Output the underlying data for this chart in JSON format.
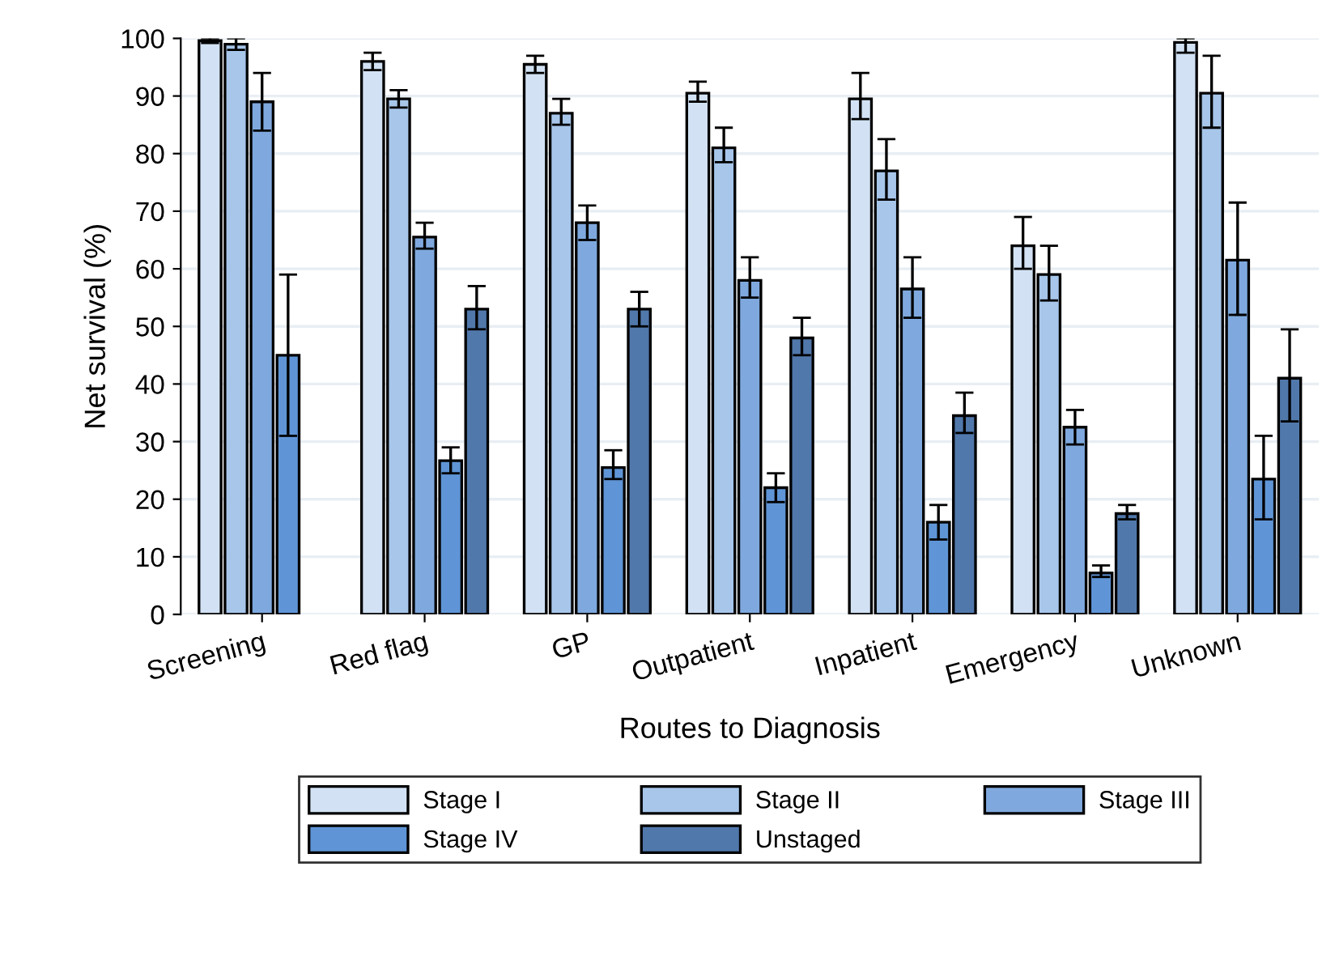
{
  "chart_data": {
    "type": "bar",
    "xlabel": "Routes to Diagnosis",
    "ylabel": "Net survival (%)",
    "categories": [
      "Screening",
      "Red flag",
      "GP",
      "Outpatient",
      "Inpatient",
      "Emergency",
      "Unknown"
    ],
    "ylim": [
      0,
      100
    ],
    "yticks": [
      0,
      10,
      20,
      30,
      40,
      50,
      60,
      70,
      80,
      90,
      100
    ],
    "grid": "y",
    "legend": "bottom",
    "series": [
      {
        "name": "Stage I",
        "color": "#d2e2f4",
        "values": [
          99.6,
          96,
          95.5,
          90.5,
          89.5,
          64,
          99.3
        ],
        "errors": [
          [
            99.2,
            100
          ],
          [
            94.5,
            97.5
          ],
          [
            94,
            97
          ],
          [
            89,
            92.5
          ],
          [
            86,
            94
          ],
          [
            60,
            69
          ],
          [
            97.5,
            100
          ]
        ]
      },
      {
        "name": "Stage II",
        "color": "#a7c6ea",
        "values": [
          99,
          89.5,
          87,
          81,
          77,
          59,
          90.5
        ],
        "errors": [
          [
            98,
            100
          ],
          [
            88,
            91
          ],
          [
            85,
            89.5
          ],
          [
            78.5,
            84.5
          ],
          [
            72,
            82.5
          ],
          [
            54.5,
            64
          ],
          [
            84.5,
            97
          ]
        ]
      },
      {
        "name": "Stage III",
        "color": "#7fa9de",
        "values": [
          89,
          65.5,
          68,
          58,
          56.5,
          32.5,
          61.5
        ],
        "errors": [
          [
            84,
            94
          ],
          [
            63.5,
            68
          ],
          [
            65,
            71
          ],
          [
            55,
            62
          ],
          [
            51.5,
            62
          ],
          [
            29.5,
            35.5
          ],
          [
            52,
            71.5
          ]
        ]
      },
      {
        "name": "Stage IV",
        "color": "#5f95d6",
        "values": [
          45,
          26.7,
          25.5,
          22,
          16,
          7.2,
          23.5
        ],
        "errors": [
          [
            31,
            59
          ],
          [
            24.5,
            29
          ],
          [
            23.5,
            28.5
          ],
          [
            19.5,
            24.5
          ],
          [
            13,
            19
          ],
          [
            6.5,
            8.5
          ],
          [
            16.5,
            31
          ]
        ]
      },
      {
        "name": "Unstaged",
        "color": "#5178ab",
        "values": [
          null,
          53,
          53,
          48,
          34.5,
          17.5,
          41
        ],
        "errors": [
          null,
          [
            49.5,
            57
          ],
          [
            50,
            56
          ],
          [
            45,
            51.5
          ],
          [
            31.5,
            38.5
          ],
          [
            16.5,
            19
          ],
          [
            33.5,
            49.5
          ]
        ]
      }
    ]
  }
}
